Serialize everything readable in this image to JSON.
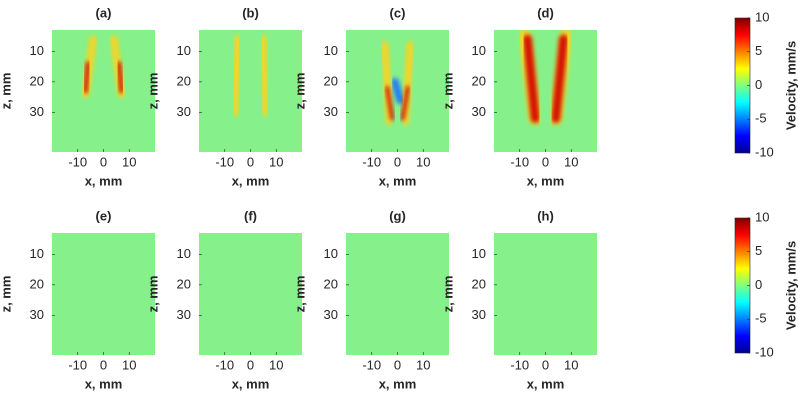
{
  "chart_data": [
    {
      "type": "heatmap",
      "title": "(a)",
      "xlabel": "x, mm",
      "ylabel": "z, mm",
      "xlim": [
        -20,
        20
      ],
      "ylim": [
        3,
        43
      ],
      "yreverse": true,
      "xticks": [
        -10,
        0,
        10
      ],
      "yticks": [
        10,
        20,
        30
      ]
    },
    {
      "type": "heatmap",
      "title": "(b)",
      "xlabel": "x, mm",
      "ylabel": "z, mm",
      "xlim": [
        -20,
        20
      ],
      "ylim": [
        3,
        43
      ],
      "yreverse": true,
      "xticks": [
        -10,
        0,
        10
      ],
      "yticks": [
        10,
        20,
        30
      ]
    },
    {
      "type": "heatmap",
      "title": "(c)",
      "xlabel": "x, mm",
      "ylabel": "z, mm",
      "xlim": [
        -20,
        20
      ],
      "ylim": [
        3,
        43
      ],
      "yreverse": true,
      "xticks": [
        -10,
        0,
        10
      ],
      "yticks": [
        10,
        20,
        30
      ]
    },
    {
      "type": "heatmap",
      "title": "(d)",
      "xlabel": "x, mm",
      "ylabel": "z, mm",
      "xlim": [
        -20,
        20
      ],
      "ylim": [
        3,
        43
      ],
      "yreverse": true,
      "xticks": [
        -10,
        0,
        10
      ],
      "yticks": [
        10,
        20,
        30
      ]
    },
    {
      "type": "heatmap",
      "title": "(e)",
      "xlabel": "x, mm",
      "ylabel": "z, mm",
      "xlim": [
        -20,
        20
      ],
      "ylim": [
        3,
        43
      ],
      "yreverse": true,
      "xticks": [
        -10,
        0,
        10
      ],
      "yticks": [
        10,
        20,
        30
      ]
    },
    {
      "type": "heatmap",
      "title": "(f)",
      "xlabel": "x, mm",
      "ylabel": "z, mm",
      "xlim": [
        -20,
        20
      ],
      "ylim": [
        3,
        43
      ],
      "yreverse": true,
      "xticks": [
        -10,
        0,
        10
      ],
      "yticks": [
        10,
        20,
        30
      ]
    },
    {
      "type": "heatmap",
      "title": "(g)",
      "xlabel": "x, mm",
      "ylabel": "z, mm",
      "xlim": [
        -20,
        20
      ],
      "ylim": [
        3,
        43
      ],
      "yreverse": true,
      "xticks": [
        -10,
        0,
        10
      ],
      "yticks": [
        10,
        20,
        30
      ]
    },
    {
      "type": "heatmap",
      "title": "(h)",
      "xlabel": "x, mm",
      "ylabel": "z, mm",
      "xlim": [
        -20,
        20
      ],
      "ylim": [
        3,
        43
      ],
      "yreverse": true,
      "xticks": [
        -10,
        0,
        10
      ],
      "yticks": [
        10,
        20,
        30
      ]
    },
    {
      "type": "colorbar",
      "ylabel": "Velocity, mm/s",
      "ylim": [
        -10,
        10
      ],
      "yticks": [
        -10,
        -5,
        0,
        5,
        10
      ],
      "colormap": "jet"
    },
    {
      "type": "colorbar",
      "ylabel": "Velocity, mm/s",
      "ylim": [
        -10,
        10
      ],
      "yticks": [
        -10,
        -5,
        0,
        5,
        10
      ],
      "colormap": "jet"
    }
  ]
}
